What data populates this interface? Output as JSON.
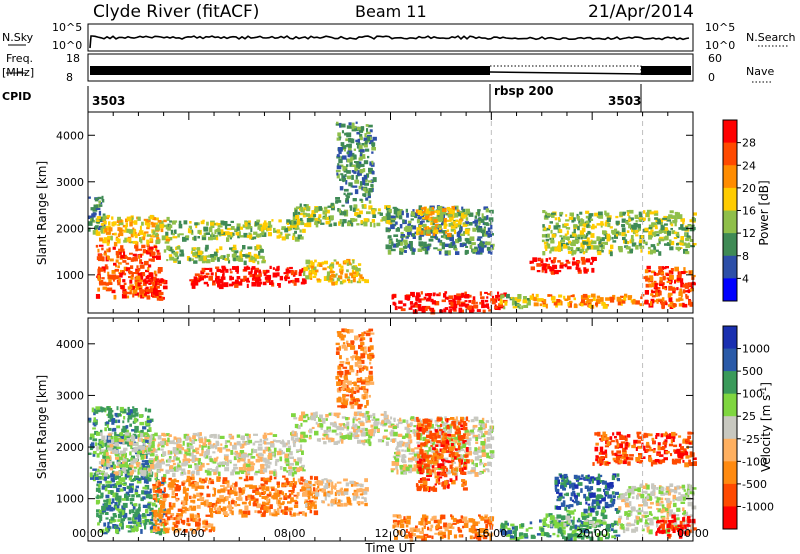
{
  "header": {
    "station": "Clyde River (fitACF)",
    "beam": "Beam 11",
    "date": "21/Apr/2014"
  },
  "strips": {
    "nsky_label": "N.Sky",
    "nsky_ticks": [
      "10^5",
      "10^0"
    ],
    "nsearch_label": "N.Search",
    "nsearch_ticks": [
      "10^5",
      "10^0"
    ],
    "freq_label_1": "Freq.",
    "freq_label_2": "[MHz]",
    "freq_ticks": [
      "18",
      "8"
    ],
    "nave_label": "Nave",
    "nave_ticks": [
      "60",
      "0"
    ],
    "cpid_label": "CPID",
    "cpid_segments": [
      "3503",
      "rbsp 200",
      "3503"
    ]
  },
  "colors": {
    "power_scale": [
      "#0000ff",
      "#2d4fa8",
      "#3f8a55",
      "#8fbf4a",
      "#ffcc00",
      "#ff8c00",
      "#ff4a00",
      "#ff0000"
    ],
    "velocity_scale": [
      "#ff0000",
      "#ff4a00",
      "#ff8a10",
      "#ffb060",
      "#c8c8c0",
      "#7fd640",
      "#3a9a5a",
      "#2a5aa8",
      "#1a30b0"
    ],
    "ground_scatter": "#bdbdb5"
  },
  "chart_data": [
    {
      "type": "heatmap",
      "title": "",
      "xlabel": "Time UT",
      "ylabel": "Slant Range [km]",
      "x_ticks": [
        "00:00",
        "04:00",
        "08:00",
        "12:00",
        "16:00",
        "20:00",
        "00:00"
      ],
      "y_ticks": [
        "1000",
        "2000",
        "3000",
        "4000"
      ],
      "xlim_hours": [
        0,
        24
      ],
      "ylim_km": [
        180,
        4500
      ],
      "colorbar_label": "Power [dB]",
      "colorbar_ticks": [
        "4",
        "8",
        "12",
        "16",
        "20",
        "24",
        "28"
      ],
      "mode_boundaries_hours": [
        16.0,
        22.0
      ],
      "bands": [
        {
          "t0": 0.0,
          "t1": 0.6,
          "r0": 1950,
          "r1": 2800,
          "level": 2
        },
        {
          "t0": 0.3,
          "t1": 2.8,
          "r0": 550,
          "r1": 1650,
          "level": 6
        },
        {
          "t0": 0.3,
          "t1": 3.2,
          "r0": 1700,
          "r1": 2300,
          "level": 4
        },
        {
          "t0": 2.0,
          "t1": 3.0,
          "r0": 500,
          "r1": 1000,
          "level": 7
        },
        {
          "t0": 3.0,
          "t1": 7.0,
          "r0": 1300,
          "r1": 1650,
          "level": 3
        },
        {
          "t0": 3.0,
          "t1": 8.5,
          "r0": 1800,
          "r1": 2200,
          "level": 3
        },
        {
          "t0": 4.0,
          "t1": 8.5,
          "r0": 800,
          "r1": 1200,
          "level": 7
        },
        {
          "t0": 8.5,
          "t1": 11.0,
          "r0": 850,
          "r1": 1350,
          "level": 4
        },
        {
          "t0": 8.0,
          "t1": 12.0,
          "r0": 2100,
          "r1": 2550,
          "level": 3
        },
        {
          "t0": 9.8,
          "t1": 11.3,
          "r0": 2600,
          "r1": 4300,
          "level": 2
        },
        {
          "t0": 11.8,
          "t1": 16.0,
          "r0": 1500,
          "r1": 2500,
          "level": 2
        },
        {
          "t0": 13.0,
          "t1": 15.0,
          "r0": 1900,
          "r1": 2500,
          "level": 4
        },
        {
          "t0": 12.0,
          "t1": 16.5,
          "r0": 250,
          "r1": 650,
          "level": 7
        },
        {
          "t0": 16.3,
          "t1": 17.5,
          "r0": 300,
          "r1": 600,
          "level": 3
        },
        {
          "t0": 17.5,
          "t1": 22.0,
          "r0": 350,
          "r1": 600,
          "level": 5
        },
        {
          "t0": 17.5,
          "t1": 20.0,
          "r0": 1100,
          "r1": 1400,
          "level": 7
        },
        {
          "t0": 18.0,
          "t1": 24.0,
          "r0": 1500,
          "r1": 2400,
          "level": 3
        },
        {
          "t0": 22.0,
          "t1": 24.0,
          "r0": 350,
          "r1": 1200,
          "level": 6
        }
      ]
    },
    {
      "type": "heatmap",
      "title": "",
      "xlabel": "Time UT",
      "ylabel": "Slant Range [km]",
      "x_ticks": [
        "00:00",
        "04:00",
        "08:00",
        "12:00",
        "16:00",
        "20:00",
        "00:00"
      ],
      "y_ticks": [
        "1000",
        "2000",
        "3000",
        "4000"
      ],
      "xlim_hours": [
        0,
        24
      ],
      "ylim_km": [
        180,
        4500
      ],
      "colorbar_label": "Velocity [m s^-1]",
      "colorbar_ticks": [
        "1000",
        "500",
        "100",
        "25",
        "-25",
        "-100",
        "-500",
        "-1000"
      ],
      "mode_boundaries_hours": [
        16.0,
        22.0
      ],
      "bands": [
        {
          "t0": 0.0,
          "t1": 2.5,
          "r0": 1400,
          "r1": 2800,
          "level": 6
        },
        {
          "t0": 0.3,
          "t1": 3.0,
          "r0": 350,
          "r1": 1500,
          "level": 6
        },
        {
          "t0": 0.3,
          "t1": 8.5,
          "r0": 1500,
          "r1": 2300,
          "level": 4
        },
        {
          "t0": 2.5,
          "t1": 5.0,
          "r0": 400,
          "r1": 1450,
          "level": 2
        },
        {
          "t0": 5.0,
          "t1": 9.0,
          "r0": 700,
          "r1": 1450,
          "level": 2
        },
        {
          "t0": 8.5,
          "t1": 11.0,
          "r0": 900,
          "r1": 1400,
          "level": 3
        },
        {
          "t0": 8.0,
          "t1": 12.0,
          "r0": 2100,
          "r1": 2700,
          "level": 4
        },
        {
          "t0": 9.8,
          "t1": 11.2,
          "r0": 2800,
          "r1": 4300,
          "level": 2
        },
        {
          "t0": 12.0,
          "t1": 16.0,
          "r0": 1500,
          "r1": 2600,
          "level": 4
        },
        {
          "t0": 13.0,
          "t1": 15.0,
          "r0": 1200,
          "r1": 2600,
          "level": 1
        },
        {
          "t0": 12.0,
          "t1": 16.0,
          "r0": 250,
          "r1": 700,
          "level": 2
        },
        {
          "t0": 16.3,
          "t1": 21.0,
          "r0": 250,
          "r1": 600,
          "level": 6
        },
        {
          "t0": 18.0,
          "t1": 20.5,
          "r0": 500,
          "r1": 800,
          "level": 5
        },
        {
          "t0": 18.5,
          "t1": 21.0,
          "r0": 800,
          "r1": 1500,
          "level": 7
        },
        {
          "t0": 20.0,
          "t1": 24.0,
          "r0": 1700,
          "r1": 2300,
          "level": 1
        },
        {
          "t0": 21.0,
          "t1": 24.0,
          "r0": 400,
          "r1": 1300,
          "level": 4
        },
        {
          "t0": 22.5,
          "t1": 24.0,
          "r0": 300,
          "r1": 700,
          "level": 0
        }
      ]
    }
  ]
}
